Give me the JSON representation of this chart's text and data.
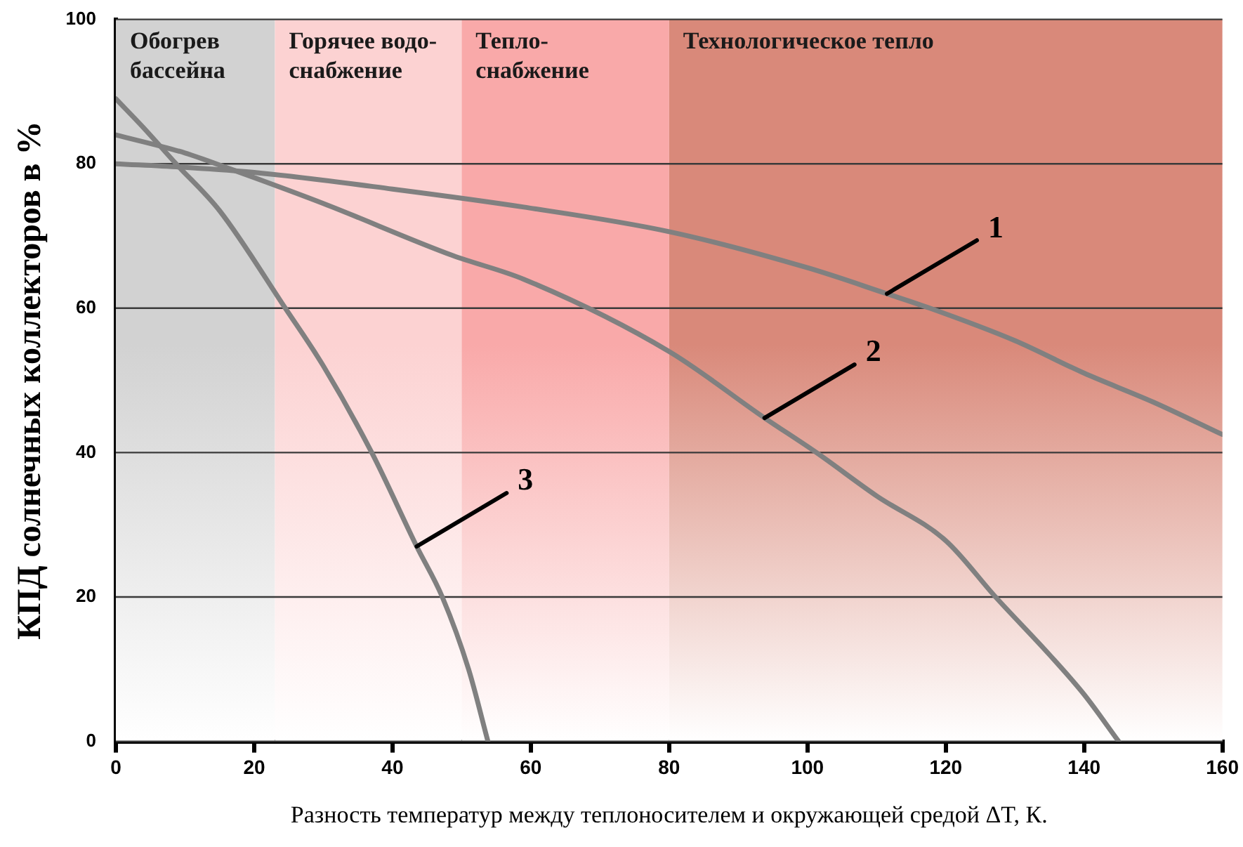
{
  "chart_data": {
    "type": "line",
    "xlabel": "Разность температур между теплоносителем и окружающей средой ΔT, К.",
    "ylabel": "КПД солнечных коллекторов в %",
    "xlim": [
      0,
      160
    ],
    "xticks": [
      0,
      20,
      40,
      60,
      80,
      100,
      120,
      140,
      160
    ],
    "ylim": [
      0,
      100
    ],
    "yticks": [
      0,
      20,
      40,
      60,
      80,
      100
    ],
    "grid": "y",
    "legend": false,
    "marker": "none",
    "line_style": "solid",
    "series": [
      {
        "color": "#808080",
        "x": [
          0,
          10,
          20,
          40,
          59,
          80,
          100,
          111.5,
          117.7,
          130,
          140,
          150,
          160
        ],
        "values": [
          80,
          79.5,
          78.8,
          76.5,
          74,
          70.6,
          65.6,
          62,
          60,
          55.5,
          51,
          47,
          42.5
        ]
      },
      {
        "color": "#808080",
        "x": [
          0,
          10,
          16.5,
          30,
          48.7,
          59,
          80,
          93.8,
          101.3,
          110,
          120,
          127.2,
          135,
          140,
          145
        ],
        "values": [
          84,
          81.5,
          79.3,
          74.5,
          67.3,
          64,
          54,
          44.8,
          40,
          34,
          27.8,
          20,
          12,
          6.5,
          0
        ]
      },
      {
        "color": "#808080",
        "x": [
          0,
          4,
          8.7,
          15,
          24.5,
          30,
          37,
          43.5,
          47.2,
          51,
          53.8
        ],
        "values": [
          89,
          85,
          80,
          73.5,
          60,
          52,
          40,
          27,
          20,
          10,
          0
        ]
      }
    ],
    "bands": [
      {
        "axis": "x",
        "from": 0,
        "to": 23,
        "label": "Обогрев бассейна",
        "color": "#d2d2d2"
      },
      {
        "axis": "x",
        "from": 23,
        "to": 50,
        "label": "Горячее водо-снабжение",
        "color": "#fcd2d2"
      },
      {
        "axis": "x",
        "from": 50,
        "to": 80,
        "label": "Тепло-снабжение",
        "color": "#f9a9a9"
      },
      {
        "axis": "x",
        "from": 80,
        "to": 160,
        "label": "Технологическое тепло",
        "color": "#d9897a"
      }
    ],
    "annotations": [
      {
        "text": "1",
        "x": 111.5,
        "y": 62
      },
      {
        "text": "2",
        "x": 93.8,
        "y": 44.8
      },
      {
        "text": "3",
        "x": 43.5,
        "y": 27
      }
    ]
  }
}
